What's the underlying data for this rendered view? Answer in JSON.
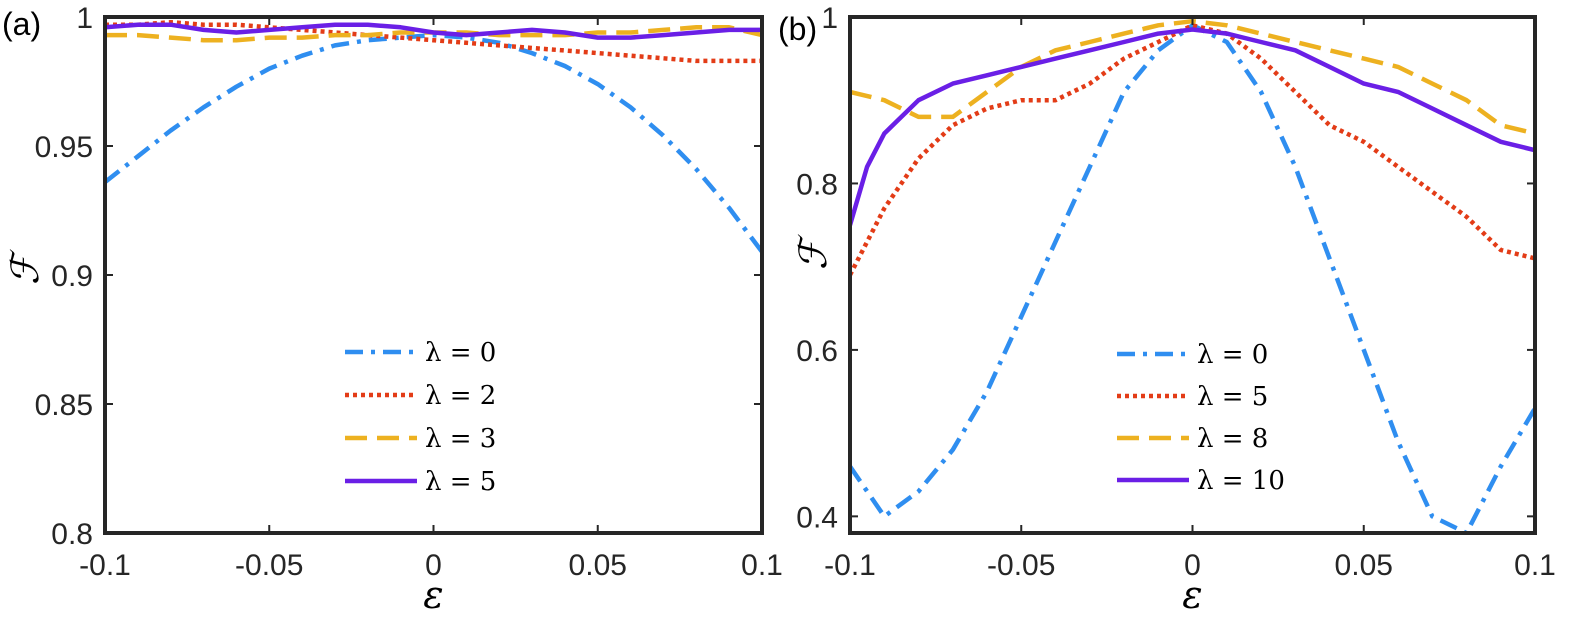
{
  "chart_data": [
    {
      "type": "line",
      "panel_label": "(a)",
      "xlabel": "ε",
      "ylabel": "ℱ",
      "xlim": [
        -0.1,
        0.1
      ],
      "ylim": [
        0.8,
        1.0
      ],
      "xticks": [
        -0.1,
        -0.05,
        0,
        0.05,
        0.1
      ],
      "xtick_labels": [
        "-0.1",
        "-0.05",
        "0",
        "0.05",
        "0.1"
      ],
      "yticks": [
        0.8,
        0.85,
        0.9,
        0.95,
        1.0
      ],
      "ytick_labels": [
        "0.8",
        "0.85",
        "0.9",
        "0.95",
        "1"
      ],
      "legend_position": "lower-center",
      "series": [
        {
          "name": "λ = 0",
          "color": "#2f8ef0",
          "dash": "dashdot",
          "x": [
            -0.1,
            -0.09,
            -0.08,
            -0.07,
            -0.06,
            -0.05,
            -0.04,
            -0.03,
            -0.02,
            -0.01,
            0,
            0.01,
            0.02,
            0.03,
            0.04,
            0.05,
            0.06,
            0.07,
            0.08,
            0.09,
            0.1
          ],
          "y": [
            0.936,
            0.946,
            0.956,
            0.965,
            0.973,
            0.98,
            0.985,
            0.989,
            0.991,
            0.992,
            0.993,
            0.992,
            0.99,
            0.986,
            0.981,
            0.974,
            0.965,
            0.954,
            0.941,
            0.926,
            0.909
          ]
        },
        {
          "name": "λ = 2",
          "color": "#e33c17",
          "dash": "dotted",
          "x": [
            -0.1,
            -0.09,
            -0.08,
            -0.07,
            -0.06,
            -0.05,
            -0.04,
            -0.03,
            -0.02,
            -0.01,
            0,
            0.01,
            0.02,
            0.03,
            0.04,
            0.05,
            0.06,
            0.07,
            0.08,
            0.09,
            0.1
          ],
          "y": [
            0.997,
            0.997,
            0.998,
            0.997,
            0.997,
            0.996,
            0.995,
            0.994,
            0.993,
            0.992,
            0.991,
            0.99,
            0.989,
            0.988,
            0.987,
            0.986,
            0.985,
            0.984,
            0.983,
            0.983,
            0.983
          ]
        },
        {
          "name": "λ = 3",
          "color": "#edb120",
          "dash": "dashed",
          "x": [
            -0.1,
            -0.09,
            -0.08,
            -0.07,
            -0.06,
            -0.05,
            -0.04,
            -0.03,
            -0.02,
            -0.01,
            0,
            0.01,
            0.02,
            0.03,
            0.04,
            0.05,
            0.06,
            0.07,
            0.08,
            0.09,
            0.1
          ],
          "y": [
            0.993,
            0.993,
            0.992,
            0.991,
            0.991,
            0.992,
            0.992,
            0.993,
            0.993,
            0.994,
            0.994,
            0.994,
            0.993,
            0.993,
            0.993,
            0.994,
            0.994,
            0.995,
            0.996,
            0.996,
            0.993
          ]
        },
        {
          "name": "λ = 5",
          "color": "#6a1fe6",
          "dash": "solid",
          "x": [
            -0.1,
            -0.09,
            -0.08,
            -0.07,
            -0.06,
            -0.05,
            -0.04,
            -0.03,
            -0.02,
            -0.01,
            0,
            0.01,
            0.02,
            0.03,
            0.04,
            0.05,
            0.06,
            0.07,
            0.08,
            0.09,
            0.1
          ],
          "y": [
            0.996,
            0.997,
            0.997,
            0.995,
            0.994,
            0.995,
            0.996,
            0.997,
            0.997,
            0.996,
            0.994,
            0.993,
            0.994,
            0.995,
            0.994,
            0.992,
            0.992,
            0.993,
            0.994,
            0.995,
            0.995
          ]
        }
      ]
    },
    {
      "type": "line",
      "panel_label": "(b)",
      "xlabel": "ε",
      "ylabel": "ℱ",
      "xlim": [
        -0.1,
        0.1
      ],
      "ylim": [
        0.38,
        1.0
      ],
      "xticks": [
        -0.1,
        -0.05,
        0,
        0.05,
        0.1
      ],
      "xtick_labels": [
        "-0.1",
        "-0.05",
        "0",
        "0.05",
        "0.1"
      ],
      "yticks": [
        0.4,
        0.6,
        0.8,
        1.0
      ],
      "ytick_labels": [
        "0.4",
        "0.6",
        "0.8",
        "1"
      ],
      "legend_position": "lower-center",
      "series": [
        {
          "name": "λ = 0",
          "color": "#2f8ef0",
          "dash": "dashdot",
          "x": [
            -0.1,
            -0.09,
            -0.08,
            -0.07,
            -0.06,
            -0.05,
            -0.04,
            -0.03,
            -0.02,
            -0.01,
            0,
            0.01,
            0.02,
            0.03,
            0.04,
            0.05,
            0.06,
            0.07,
            0.08,
            0.09,
            0.1
          ],
          "y": [
            0.46,
            0.4,
            0.43,
            0.48,
            0.55,
            0.64,
            0.73,
            0.82,
            0.91,
            0.96,
            0.99,
            0.97,
            0.91,
            0.82,
            0.71,
            0.6,
            0.49,
            0.4,
            0.38,
            0.46,
            0.53
          ]
        },
        {
          "name": "λ = 5",
          "color": "#e33c17",
          "dash": "dotted",
          "x": [
            -0.1,
            -0.09,
            -0.08,
            -0.07,
            -0.06,
            -0.05,
            -0.04,
            -0.03,
            -0.02,
            -0.01,
            0,
            0.01,
            0.02,
            0.03,
            0.04,
            0.05,
            0.06,
            0.07,
            0.08,
            0.09,
            0.1
          ],
          "y": [
            0.69,
            0.77,
            0.83,
            0.87,
            0.89,
            0.9,
            0.9,
            0.92,
            0.95,
            0.97,
            0.99,
            0.98,
            0.95,
            0.91,
            0.87,
            0.85,
            0.82,
            0.79,
            0.76,
            0.72,
            0.71
          ]
        },
        {
          "name": "λ = 8",
          "color": "#edb120",
          "dash": "dashed",
          "x": [
            -0.1,
            -0.09,
            -0.08,
            -0.07,
            -0.06,
            -0.05,
            -0.04,
            -0.03,
            -0.02,
            -0.01,
            0,
            0.01,
            0.02,
            0.03,
            0.04,
            0.05,
            0.06,
            0.07,
            0.08,
            0.09,
            0.1
          ],
          "y": [
            0.91,
            0.9,
            0.88,
            0.88,
            0.91,
            0.94,
            0.96,
            0.97,
            0.98,
            0.99,
            0.995,
            0.99,
            0.98,
            0.97,
            0.96,
            0.95,
            0.94,
            0.92,
            0.9,
            0.87,
            0.86
          ]
        },
        {
          "name": "λ = 10",
          "color": "#6a1fe6",
          "dash": "solid",
          "x": [
            -0.1,
            -0.095,
            -0.09,
            -0.08,
            -0.07,
            -0.06,
            -0.05,
            -0.04,
            -0.03,
            -0.02,
            -0.01,
            0,
            0.01,
            0.02,
            0.03,
            0.04,
            0.05,
            0.06,
            0.07,
            0.08,
            0.09,
            0.1
          ],
          "y": [
            0.75,
            0.82,
            0.86,
            0.9,
            0.92,
            0.93,
            0.94,
            0.95,
            0.96,
            0.97,
            0.98,
            0.985,
            0.98,
            0.97,
            0.96,
            0.94,
            0.92,
            0.91,
            0.89,
            0.87,
            0.85,
            0.84
          ]
        }
      ]
    }
  ]
}
